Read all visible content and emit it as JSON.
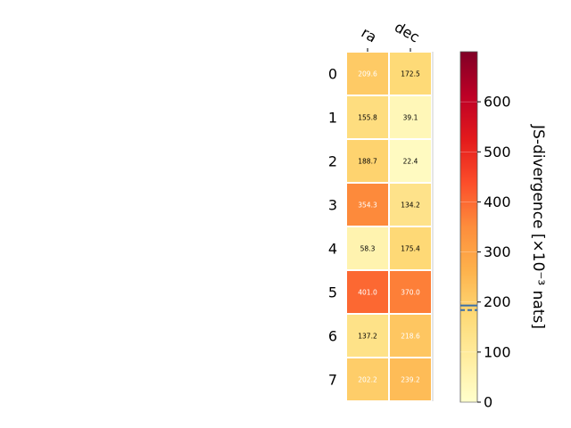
{
  "chart_data": {
    "type": "heatmap",
    "columns": [
      "ra",
      "dec"
    ],
    "rows": [
      "0",
      "1",
      "2",
      "3",
      "4",
      "5",
      "6",
      "7"
    ],
    "values": [
      [
        209.6,
        172.5
      ],
      [
        155.8,
        39.1
      ],
      [
        188.7,
        22.4
      ],
      [
        354.3,
        134.2
      ],
      [
        58.3,
        175.4
      ],
      [
        401.0,
        370.0
      ],
      [
        137.2,
        218.6
      ],
      [
        202.2,
        239.2
      ]
    ],
    "value_labels": [
      [
        "209.6",
        "172.5"
      ],
      [
        "155.8",
        "39.1"
      ],
      [
        "188.7",
        "22.4"
      ],
      [
        "354.3",
        "134.2"
      ],
      [
        "58.3",
        "175.4"
      ],
      [
        "401.0",
        "370.0"
      ],
      [
        "137.2",
        "218.6"
      ],
      [
        "202.2",
        "239.2"
      ]
    ],
    "colorbar": {
      "label": "JS-divergence [×10⁻³ nats]",
      "range": [
        0,
        700
      ],
      "ticks": [
        "0",
        "100",
        "200",
        "300",
        "400",
        "500",
        "600"
      ],
      "tick_values": [
        0,
        100,
        200,
        300,
        400,
        500,
        600
      ],
      "colormap": "YlOrRd",
      "markers": [
        {
          "value": 193,
          "style": "solid",
          "color": "#3a6fa8"
        },
        {
          "value": 184,
          "style": "dashed",
          "color": "#3a6fa8"
        }
      ]
    }
  }
}
